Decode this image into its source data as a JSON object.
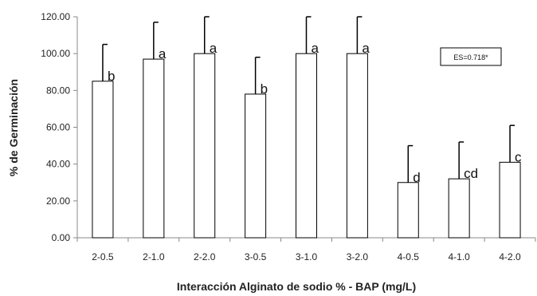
{
  "chart_data": {
    "type": "bar",
    "title": "",
    "xlabel": "Interacción Alginato de sodio % - BAP (mg/L)",
    "ylabel": "% de Germinación",
    "ylim": [
      0,
      120
    ],
    "yticks": [
      "0.00",
      "20.00",
      "40.00",
      "60.00",
      "80.00",
      "100.00",
      "120.00"
    ],
    "categories": [
      "2-0.5",
      "2-1.0",
      "2-2.0",
      "3-0.5",
      "3-1.0",
      "3-2.0",
      "4-0.5",
      "4-1.0",
      "4-2.0"
    ],
    "values": [
      85,
      97,
      100,
      78,
      100,
      100,
      30,
      32,
      41
    ],
    "error_upper": [
      105,
      117,
      120,
      98,
      120,
      120,
      50,
      52,
      61
    ],
    "significance_letters": [
      "b",
      "a",
      "a",
      "b",
      "a",
      "a",
      "d",
      "cd",
      "c"
    ],
    "annotation": "ES=0.718*",
    "grid": false,
    "legend": "none",
    "colors": {
      "bar_fill": "#ffffff",
      "bar_stroke": "#000000",
      "axis": "#888888"
    }
  }
}
